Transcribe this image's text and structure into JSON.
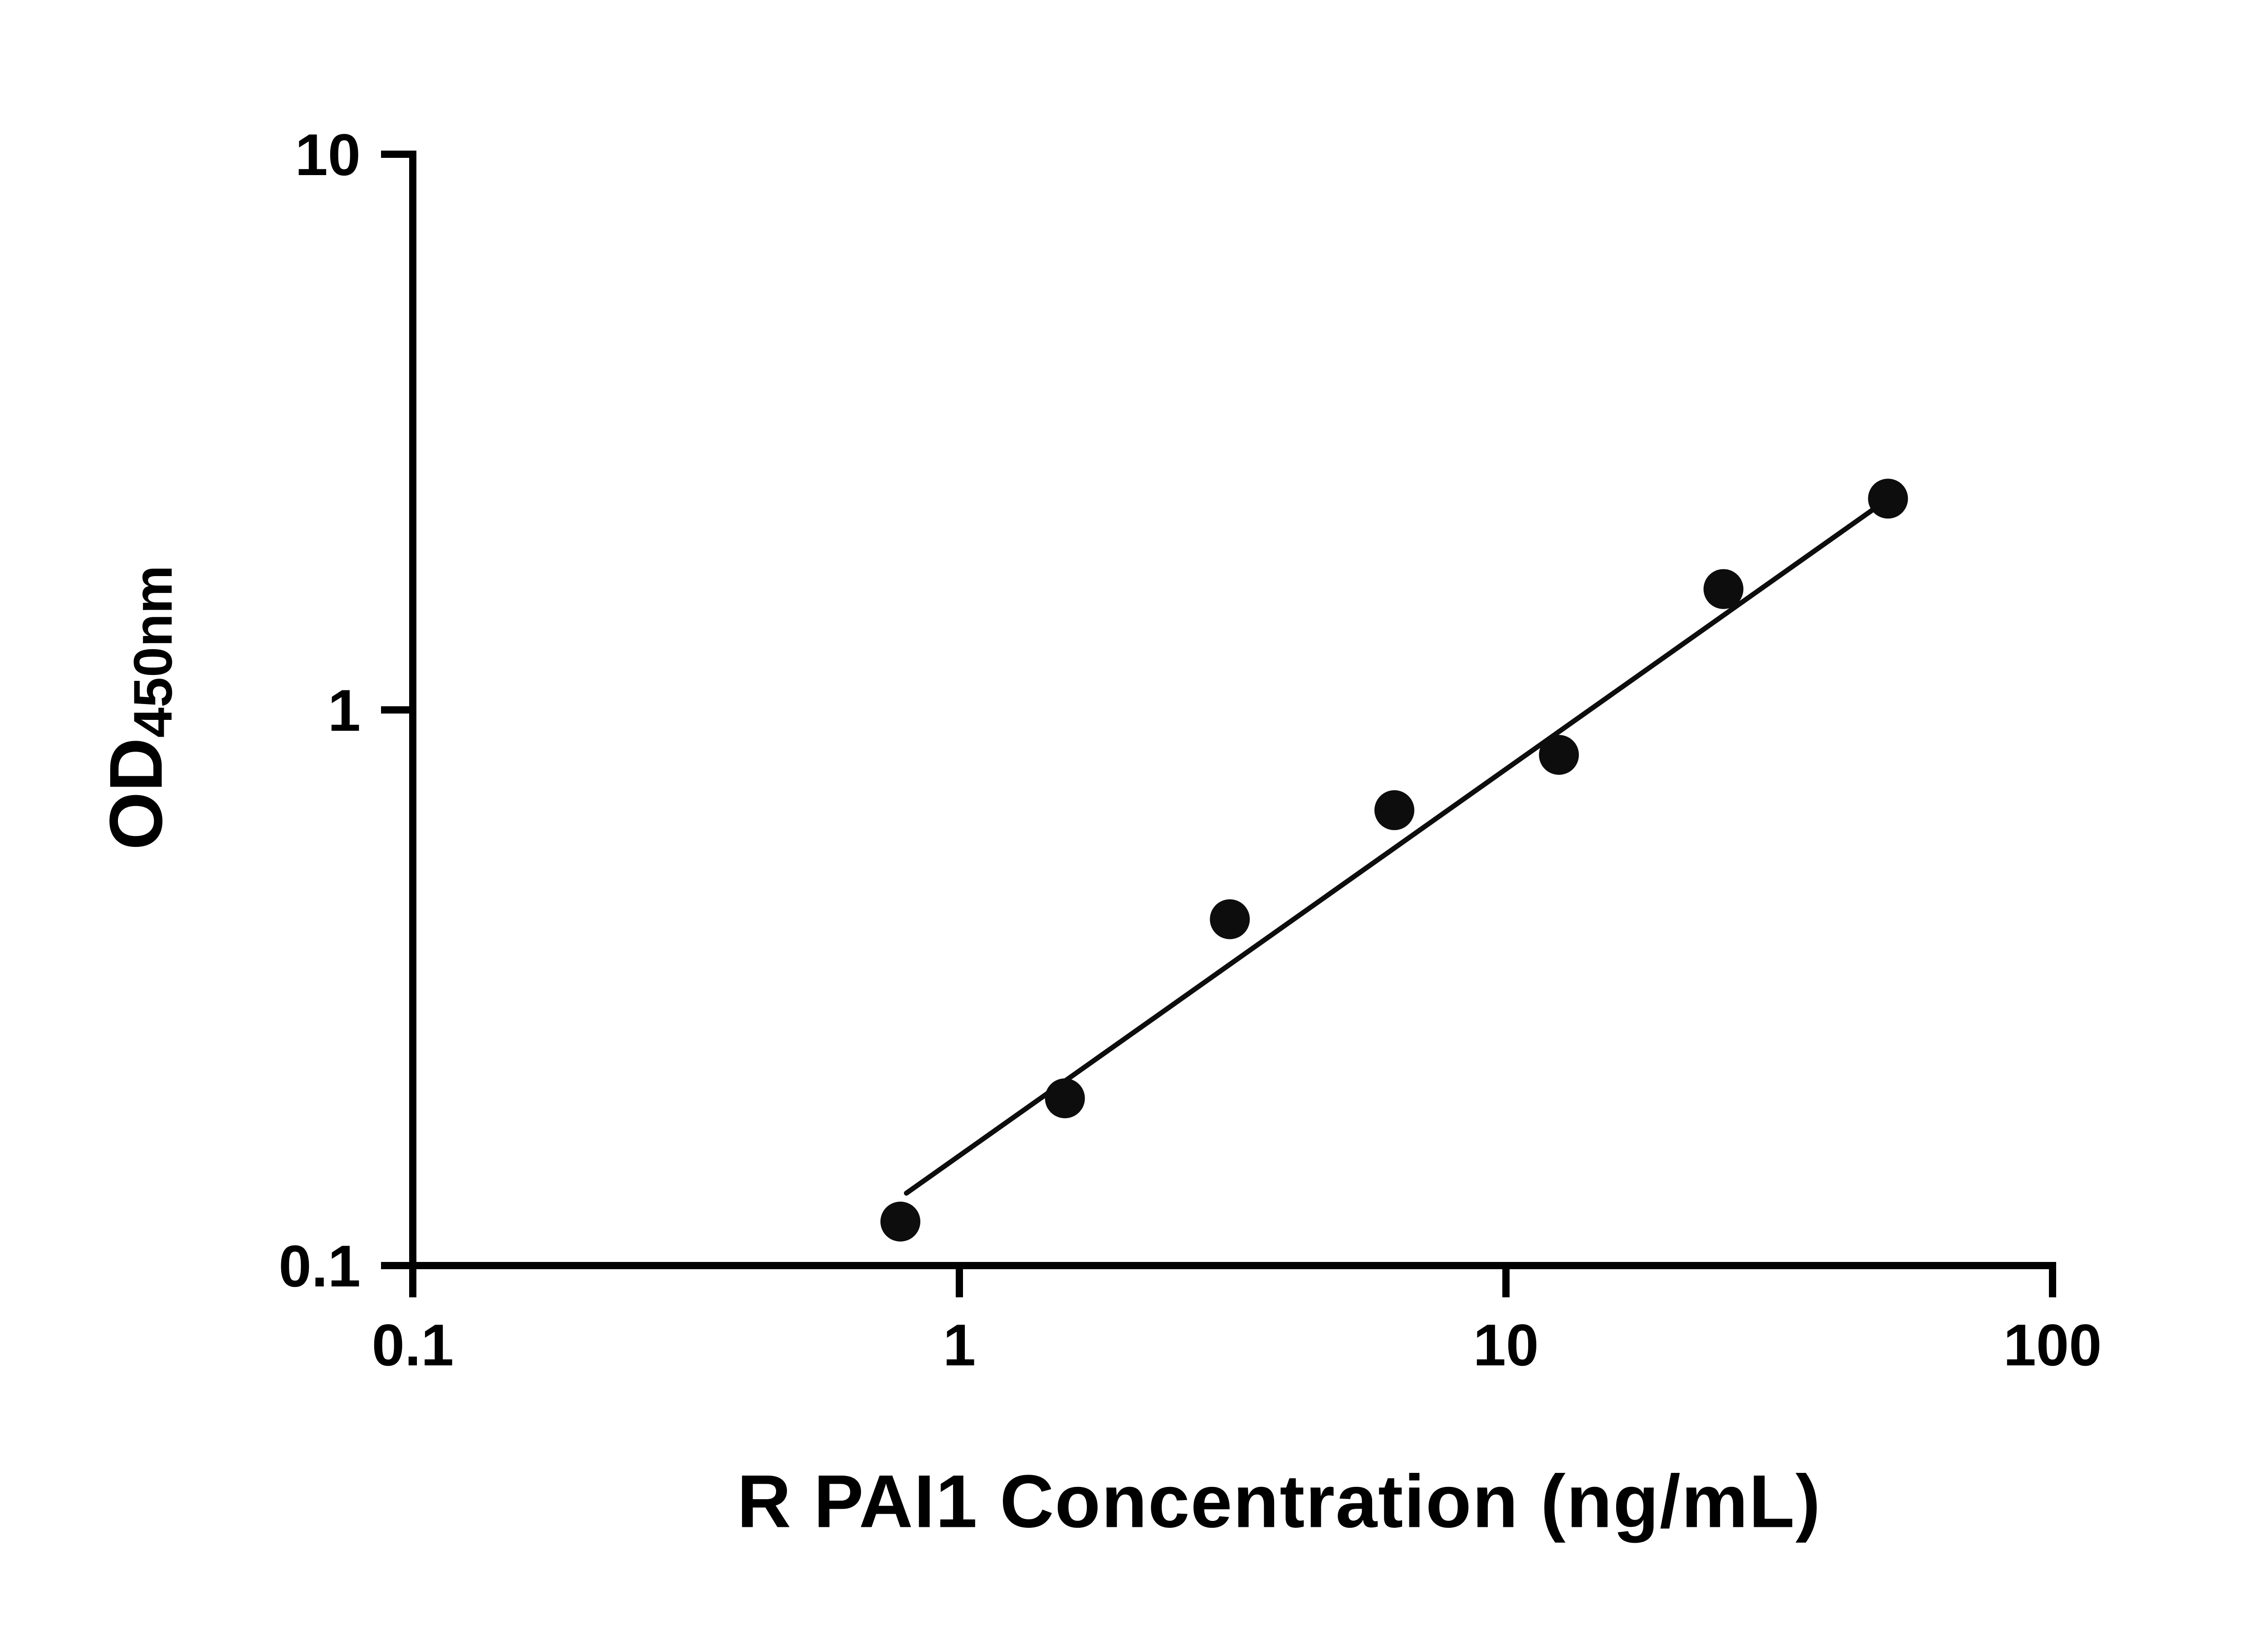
{
  "figure": {
    "background": "#ffffff"
  },
  "chart_data": {
    "type": "scatter",
    "title": "",
    "xlabel": "R PAI1 Concentration (ng/mL)",
    "ylabel_main": "OD",
    "ylabel_sub": "450nm",
    "x_scale": "log10",
    "y_scale": "log10",
    "xlim": [
      0.1,
      100
    ],
    "ylim": [
      0.1,
      10
    ],
    "x_ticks": [
      0.1,
      1,
      10,
      100
    ],
    "x_tick_labels": [
      "0.1",
      "1",
      "10",
      "100"
    ],
    "y_ticks": [
      0.1,
      1,
      10
    ],
    "y_tick_labels": [
      "0.1",
      "1",
      "10"
    ],
    "grid": false,
    "legend": false,
    "series": [
      {
        "name": "standard-curve-points",
        "marker": "circle",
        "x": [
          0.78,
          1.56,
          3.125,
          6.25,
          12.5,
          25,
          50
        ],
        "y": [
          0.12,
          0.2,
          0.42,
          0.66,
          0.83,
          1.65,
          2.4
        ]
      }
    ],
    "trendline": {
      "x1": 0.8,
      "y1": 0.135,
      "x2": 51,
      "y2": 2.43
    },
    "colors": {
      "points": "#0d0d0d",
      "line": "#0d0d0d",
      "axis": "#000000",
      "text": "#000000"
    }
  }
}
